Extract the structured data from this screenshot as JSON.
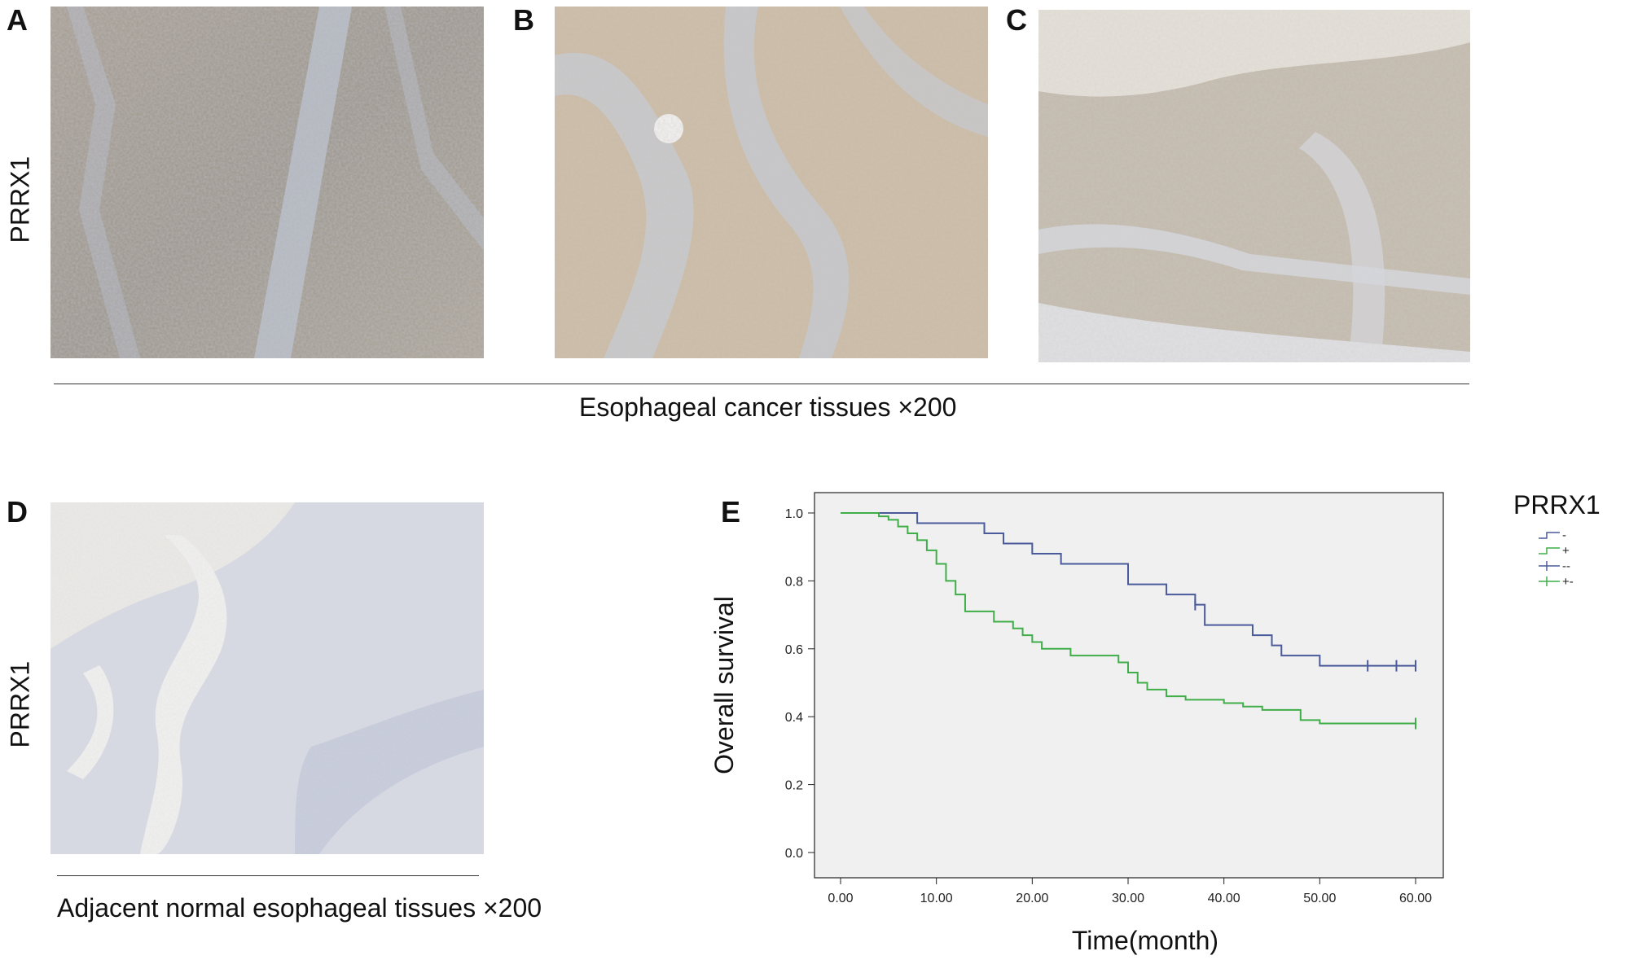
{
  "panels": {
    "A": {
      "letter": "A"
    },
    "B": {
      "letter": "B"
    },
    "C": {
      "letter": "C"
    },
    "D": {
      "letter": "D"
    },
    "E": {
      "letter": "E"
    }
  },
  "row_labels": {
    "top": "PRRX1",
    "bottom": "PRRX1"
  },
  "captions": {
    "cancer": "Esophageal cancer tissues ×200",
    "normal": "Adjacent normal esophageal tissues ×200"
  },
  "legend": {
    "title": "PRRX1",
    "entries": [
      "-",
      "+",
      "--",
      "+-"
    ],
    "colors": [
      "#4a5a9a",
      "#3fae49",
      "#4a5a9a",
      "#3fae49"
    ]
  },
  "chart_data": {
    "type": "line",
    "title": "",
    "xlabel": "Time(month)",
    "ylabel": "Overall survival",
    "xlim": [
      0,
      60
    ],
    "ylim": [
      0,
      1.0
    ],
    "xticks": [
      "0.00",
      "10.00",
      "20.00",
      "30.00",
      "40.00",
      "50.00",
      "60.00"
    ],
    "yticks": [
      "0.0",
      "0.2",
      "0.4",
      "0.6",
      "0.8",
      "1.0"
    ],
    "legend_position": "right",
    "background": "#f0f0f0",
    "series": [
      {
        "name": "-",
        "color": "#4a5a9a",
        "steps": [
          [
            0,
            1.0
          ],
          [
            8,
            0.97
          ],
          [
            15,
            0.94
          ],
          [
            17,
            0.91
          ],
          [
            20,
            0.88
          ],
          [
            23,
            0.85
          ],
          [
            30,
            0.79
          ],
          [
            34,
            0.76
          ],
          [
            37,
            0.73
          ],
          [
            38,
            0.67
          ],
          [
            43,
            0.64
          ],
          [
            45,
            0.61
          ],
          [
            46,
            0.58
          ],
          [
            50,
            0.55
          ],
          [
            60,
            0.55
          ]
        ],
        "censors": [
          [
            37,
            0.73
          ],
          [
            55,
            0.55
          ],
          [
            58,
            0.55
          ],
          [
            60,
            0.55
          ]
        ]
      },
      {
        "name": "+",
        "color": "#3fae49",
        "steps": [
          [
            0,
            1.0
          ],
          [
            4,
            0.99
          ],
          [
            5,
            0.98
          ],
          [
            6,
            0.96
          ],
          [
            7,
            0.94
          ],
          [
            8,
            0.92
          ],
          [
            9,
            0.89
          ],
          [
            10,
            0.85
          ],
          [
            11,
            0.8
          ],
          [
            12,
            0.76
          ],
          [
            13,
            0.71
          ],
          [
            16,
            0.68
          ],
          [
            18,
            0.66
          ],
          [
            19,
            0.64
          ],
          [
            20,
            0.62
          ],
          [
            21,
            0.6
          ],
          [
            24,
            0.58
          ],
          [
            29,
            0.56
          ],
          [
            30,
            0.53
          ],
          [
            31,
            0.5
          ],
          [
            32,
            0.48
          ],
          [
            34,
            0.46
          ],
          [
            36,
            0.45
          ],
          [
            40,
            0.44
          ],
          [
            42,
            0.43
          ],
          [
            44,
            0.42
          ],
          [
            48,
            0.39
          ],
          [
            50,
            0.38
          ],
          [
            60,
            0.38
          ]
        ],
        "censors": [
          [
            60,
            0.38
          ]
        ]
      }
    ]
  }
}
